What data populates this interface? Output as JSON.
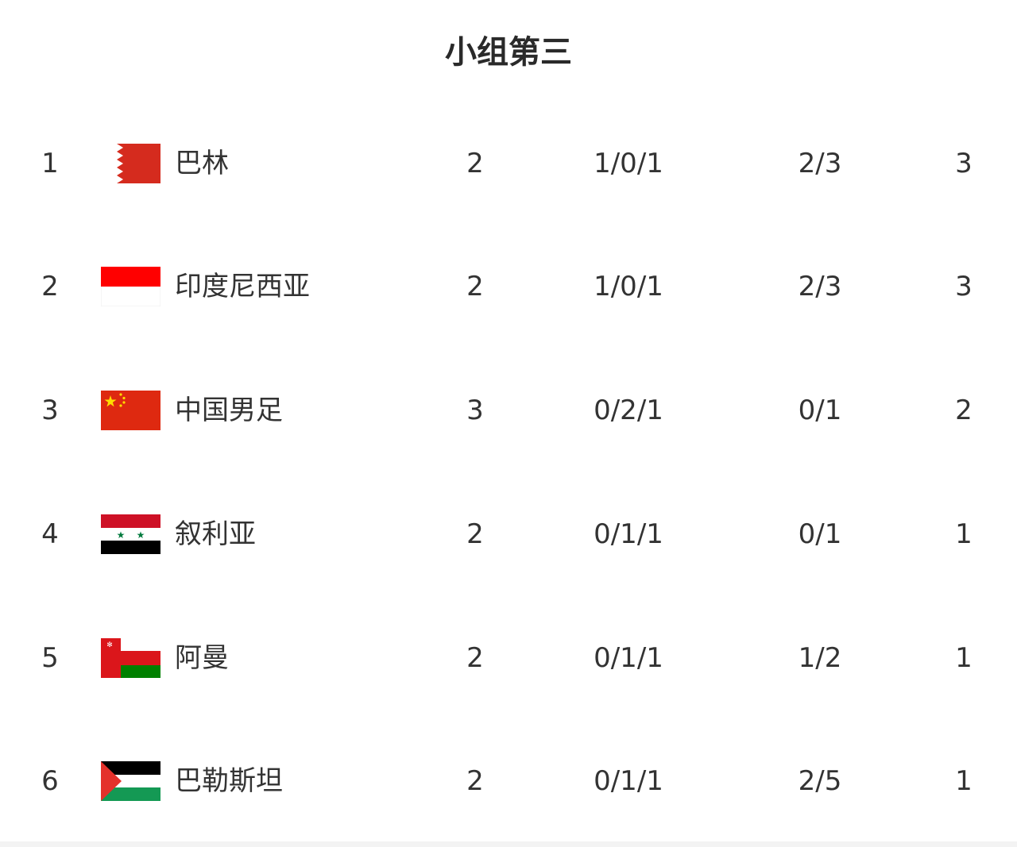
{
  "title": "小组第三",
  "colors": {
    "text": "#333333",
    "title": "#2a2a2a"
  },
  "rows": [
    {
      "rank": "1",
      "flag": "bahrain-flag",
      "team": "巴林",
      "played": "2",
      "wdl": "1/0/1",
      "goals": "2/3",
      "points": "3"
    },
    {
      "rank": "2",
      "flag": "indonesia-flag",
      "team": "印度尼西亚",
      "played": "2",
      "wdl": "1/0/1",
      "goals": "2/3",
      "points": "3"
    },
    {
      "rank": "3",
      "flag": "china-flag",
      "team": "中国男足",
      "played": "3",
      "wdl": "0/2/1",
      "goals": "0/1",
      "points": "2"
    },
    {
      "rank": "4",
      "flag": "syria-flag",
      "team": "叙利亚",
      "played": "2",
      "wdl": "0/1/1",
      "goals": "0/1",
      "points": "1"
    },
    {
      "rank": "5",
      "flag": "oman-flag",
      "team": "阿曼",
      "played": "2",
      "wdl": "0/1/1",
      "goals": "1/2",
      "points": "1"
    },
    {
      "rank": "6",
      "flag": "palestine-flag",
      "team": "巴勒斯坦",
      "played": "2",
      "wdl": "0/1/1",
      "goals": "2/5",
      "points": "1"
    }
  ]
}
